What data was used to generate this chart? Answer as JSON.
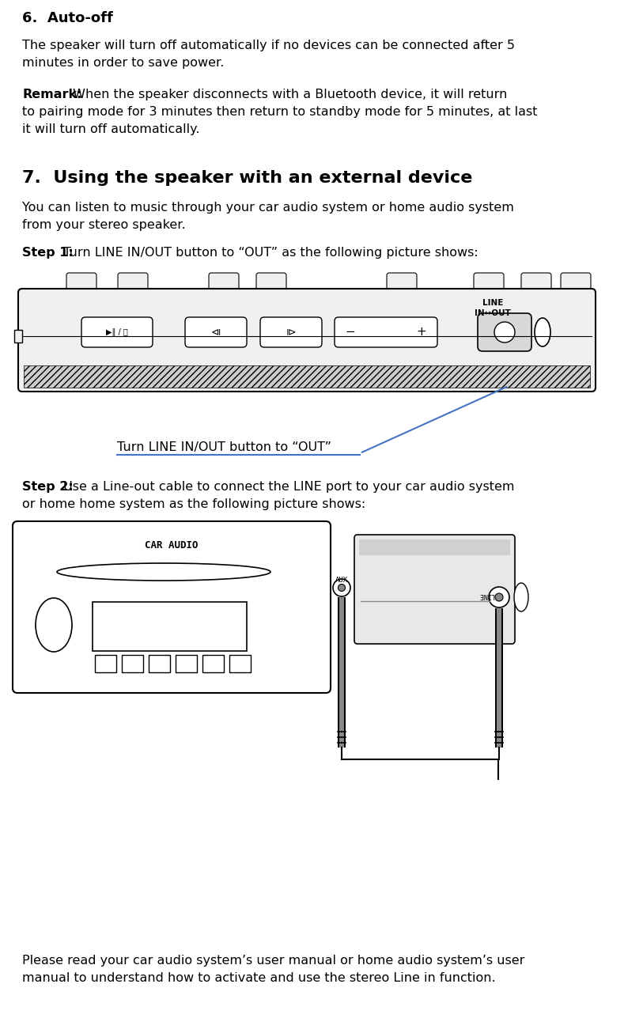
{
  "bg_color": "#ffffff",
  "text_color": "#000000",
  "heading6": "6.  Auto-off",
  "para1_l1": "The speaker will turn off automatically if no devices can be connected after 5",
  "para1_l2": "minutes in order to save power.",
  "remark_bold": "Remark:",
  "remark_rest": " When the speaker disconnects with a Bluetooth device, it will return",
  "remark_l2": "to pairing mode for 3 minutes then return to standby mode for 5 minutes, at last",
  "remark_l3": "it will turn off automatically.",
  "heading7": "7.  Using the speaker with an external device",
  "para2_l1": "You can listen to music through your car audio system or home audio system",
  "para2_l2": "from your stereo speaker.",
  "step1_bold": "Step 1:",
  "step1_rest": " Turn LINE IN/OUT button to “OUT” as the following picture shows:",
  "step2_bold": "Step 2:",
  "step2_rest": " Use a Line-out cable to connect the LINE port to your car audio system",
  "step2_l2": "or home home system as the following picture shows:",
  "caption": "Turn LINE IN/OUT button to “OUT”",
  "para3_l1": "Please read your car audio system’s user manual or home audio system’s user",
  "para3_l2": "manual to understand how to activate and use the stereo Line in function.",
  "blue": "#4472c4",
  "black": "#000000",
  "white": "#ffffff",
  "lgray": "#f0f0f0",
  "mgray": "#cccccc",
  "dgray": "#888888"
}
